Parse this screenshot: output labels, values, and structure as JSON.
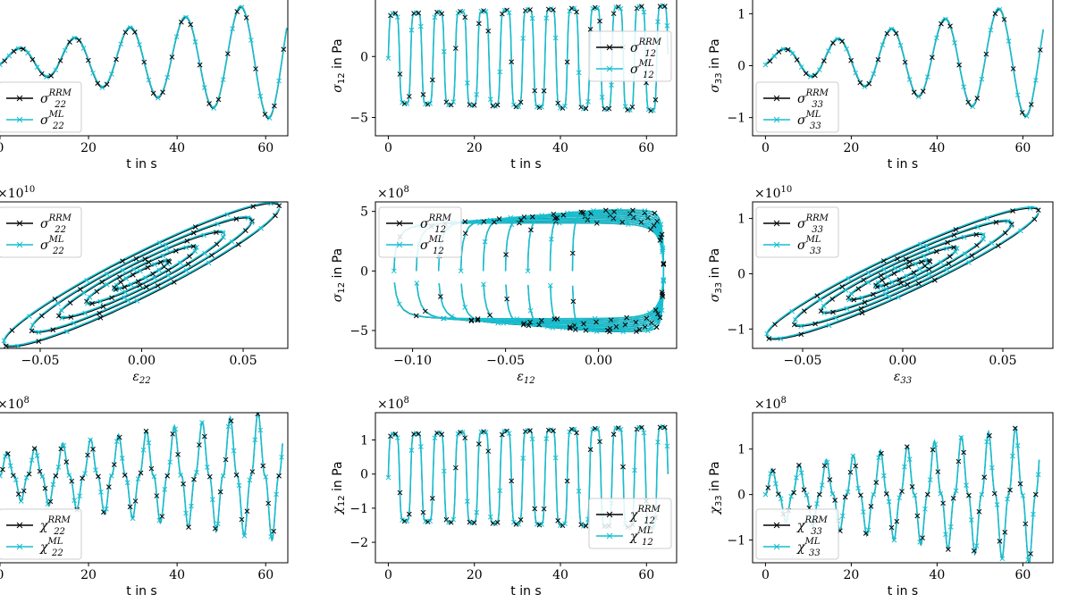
{
  "colors": {
    "rrm": "#000000",
    "ml": "#17becf",
    "axes": "#000000",
    "legend_border": "#cccccc"
  },
  "chart_data": [
    {
      "id": "p11",
      "type": "line",
      "xlabel": "t in s",
      "ylabel": "",
      "multiplier": "",
      "xlim": [
        -1,
        65
      ],
      "ylim": [
        -1.3,
        1.3
      ],
      "xticks": [
        0,
        20,
        40,
        60
      ],
      "yticks": [],
      "legend": "lower-left",
      "tick_labels_y": [],
      "series": [
        {
          "name": "σ₂₂^RRM",
          "key": "rrm",
          "sym": "σ",
          "sub": "22",
          "sup": "RRM"
        },
        {
          "name": "σ₂₂^ML",
          "key": "ml",
          "sym": "σ",
          "sub": "22",
          "sup": "ML"
        }
      ],
      "shape": "sine_growing",
      "params": {
        "period": 12.5,
        "base": 0.25,
        "grow": 0.85,
        "amp0": 0.15
      }
    },
    {
      "id": "p12",
      "type": "line",
      "xlabel": "t in s",
      "ylabel": "σ12 in Pa",
      "ylabel_sym": "σ",
      "ylabel_sub": "12",
      "multiplier": "",
      "xlim": [
        -3,
        67
      ],
      "ylim": [
        -6.5,
        5
      ],
      "xticks": [
        0,
        20,
        40,
        60
      ],
      "yticks": [
        0,
        -5
      ],
      "legend": "upper-right",
      "series": [
        {
          "name": "σ₁₂^RRM",
          "key": "rrm",
          "sym": "σ",
          "sub": "12",
          "sup": "RRM"
        },
        {
          "name": "σ₁₂^ML",
          "key": "ml",
          "sym": "σ",
          "sub": "12",
          "sup": "ML"
        }
      ],
      "shape": "square_wave",
      "params": {
        "period": 5.2,
        "lo": -4.5,
        "hi": 4.2
      }
    },
    {
      "id": "p13",
      "type": "line",
      "xlabel": "t in s",
      "ylabel": "σ33 in Pa",
      "ylabel_sym": "σ",
      "ylabel_sub": "33",
      "multiplier": "",
      "xlim": [
        -3,
        67
      ],
      "ylim": [
        -1.35,
        1.35
      ],
      "xticks": [
        0,
        20,
        40,
        60
      ],
      "yticks": [
        1,
        0,
        -1
      ],
      "legend": "lower-left",
      "series": [
        {
          "name": "σ₃₃^RRM",
          "key": "rrm",
          "sym": "σ",
          "sub": "33",
          "sup": "RRM"
        },
        {
          "name": "σ₃₃^ML",
          "key": "ml",
          "sym": "σ",
          "sub": "33",
          "sup": "ML"
        }
      ],
      "shape": "sine_growing",
      "params": {
        "period": 12.5,
        "base": 0.25,
        "grow": 0.85,
        "amp0": 0.15
      }
    },
    {
      "id": "p21",
      "type": "line",
      "xlabel": "ε22",
      "xlabel_sym": "ε",
      "xlabel_sub": "22",
      "ylabel": "",
      "multiplier": "×10^10",
      "xlim": [
        -0.072,
        0.072
      ],
      "ylim": [
        -1.3,
        1.3
      ],
      "xticks": [
        -0.05,
        0.0,
        0.05
      ],
      "xtick_labels": [
        "−0.05",
        "0.00",
        "0.05"
      ],
      "yticks": [],
      "legend": "upper-left",
      "series": [
        {
          "name": "σ₂₂^RRM",
          "key": "rrm",
          "sym": "σ",
          "sub": "22",
          "sup": "RRM"
        },
        {
          "name": "σ₂₂^ML",
          "key": "ml",
          "sym": "σ",
          "sub": "22",
          "sup": "ML"
        }
      ],
      "shape": "hysteresis",
      "params": {
        "xmax": 0.068,
        "ymax": 1.2
      }
    },
    {
      "id": "p22",
      "type": "line",
      "xlabel": "ε12",
      "xlabel_sym": "ε",
      "xlabel_sub": "12",
      "ylabel": "σ12 in Pa",
      "ylabel_sym": "σ",
      "ylabel_sub": "12",
      "multiplier": "×10^8",
      "xlim": [
        -0.12,
        0.042
      ],
      "ylim": [
        -6.5,
        5.8
      ],
      "xticks": [
        -0.1,
        -0.05,
        0.0
      ],
      "xtick_labels": [
        "−0.10",
        "−0.05",
        "0.00"
      ],
      "yticks": [
        5,
        0,
        -5
      ],
      "legend": "upper-left",
      "series": [
        {
          "name": "σ₁₂^RRM",
          "key": "rrm",
          "sym": "σ",
          "sub": "12",
          "sup": "RRM"
        },
        {
          "name": "σ₁₂^ML",
          "key": "ml",
          "sym": "σ",
          "sub": "12",
          "sup": "ML"
        }
      ],
      "shape": "box_hysteresis",
      "params": {
        "lo": -4.5,
        "hi": 4.5
      }
    },
    {
      "id": "p23",
      "type": "line",
      "xlabel": "ε33",
      "xlabel_sym": "ε",
      "xlabel_sub": "33",
      "ylabel": "σ33 in Pa",
      "ylabel_sym": "σ",
      "ylabel_sub": "33",
      "multiplier": "×10^10",
      "xlim": [
        -0.075,
        0.075
      ],
      "ylim": [
        -1.35,
        1.3
      ],
      "xticks": [
        -0.05,
        0.0,
        0.05
      ],
      "xtick_labels": [
        "−0.05",
        "0.00",
        "0.05"
      ],
      "yticks": [
        1,
        0,
        -1
      ],
      "legend": "upper-left",
      "series": [
        {
          "name": "σ₃₃^RRM",
          "key": "rrm",
          "sym": "σ",
          "sub": "33",
          "sup": "RRM"
        },
        {
          "name": "σ₃₃^ML",
          "key": "ml",
          "sym": "σ",
          "sub": "33",
          "sup": "ML"
        }
      ],
      "shape": "hysteresis",
      "params": {
        "xmax": 0.068,
        "ymax": 1.12
      }
    },
    {
      "id": "p31",
      "type": "line",
      "xlabel": "t in s",
      "ylabel": "",
      "multiplier": "×10^8",
      "xlim": [
        -1,
        65
      ],
      "ylim": [
        -2.2,
        1.6
      ],
      "xticks": [
        0,
        20,
        40,
        60
      ],
      "yticks": [],
      "legend": "lower-left",
      "series": [
        {
          "name": "χ₂₂^RRM",
          "key": "rrm",
          "sym": "χ",
          "sub": "22",
          "sup": "RRM"
        },
        {
          "name": "χ₂₂^ML",
          "key": "ml",
          "sym": "χ",
          "sub": "22",
          "sup": "ML"
        }
      ],
      "shape": "spiky",
      "params": {
        "period": 6.3,
        "amp": 1.4
      }
    },
    {
      "id": "p32",
      "type": "line",
      "xlabel": "t in s",
      "ylabel": "χ12 in Pa",
      "ylabel_sym": "χ",
      "ylabel_sub": "12",
      "multiplier": "×10^8",
      "xlim": [
        -3,
        67
      ],
      "ylim": [
        -2.6,
        1.8
      ],
      "xticks": [
        0,
        20,
        40,
        60
      ],
      "yticks": [
        1,
        0,
        -1,
        -2
      ],
      "legend": "lower-right",
      "series": [
        {
          "name": "χ₁₂^RRM",
          "key": "rrm",
          "sym": "χ",
          "sub": "12",
          "sup": "RRM"
        },
        {
          "name": "χ₁₂^ML",
          "key": "ml",
          "sym": "χ",
          "sub": "12",
          "sup": "ML"
        }
      ],
      "shape": "square_wave",
      "params": {
        "period": 5.2,
        "lo": -1.6,
        "hi": 1.4
      }
    },
    {
      "id": "p33",
      "type": "line",
      "xlabel": "t in s",
      "ylabel": "χ33 in Pa",
      "ylabel_sym": "χ",
      "ylabel_sub": "33",
      "multiplier": "×10^8",
      "xlim": [
        -3,
        67
      ],
      "ylim": [
        -1.5,
        1.8
      ],
      "xticks": [
        0,
        20,
        40,
        60
      ],
      "yticks": [
        1,
        0,
        -1
      ],
      "legend": "lower-left",
      "series": [
        {
          "name": "χ₃₃^RRM",
          "key": "rrm",
          "sym": "χ",
          "sub": "33",
          "sup": "RRM"
        },
        {
          "name": "χ₃₃^ML",
          "key": "ml",
          "sym": "χ",
          "sub": "33",
          "sup": "ML"
        }
      ],
      "shape": "spiky",
      "params": {
        "period": 6.3,
        "amp": 1.3
      }
    }
  ]
}
